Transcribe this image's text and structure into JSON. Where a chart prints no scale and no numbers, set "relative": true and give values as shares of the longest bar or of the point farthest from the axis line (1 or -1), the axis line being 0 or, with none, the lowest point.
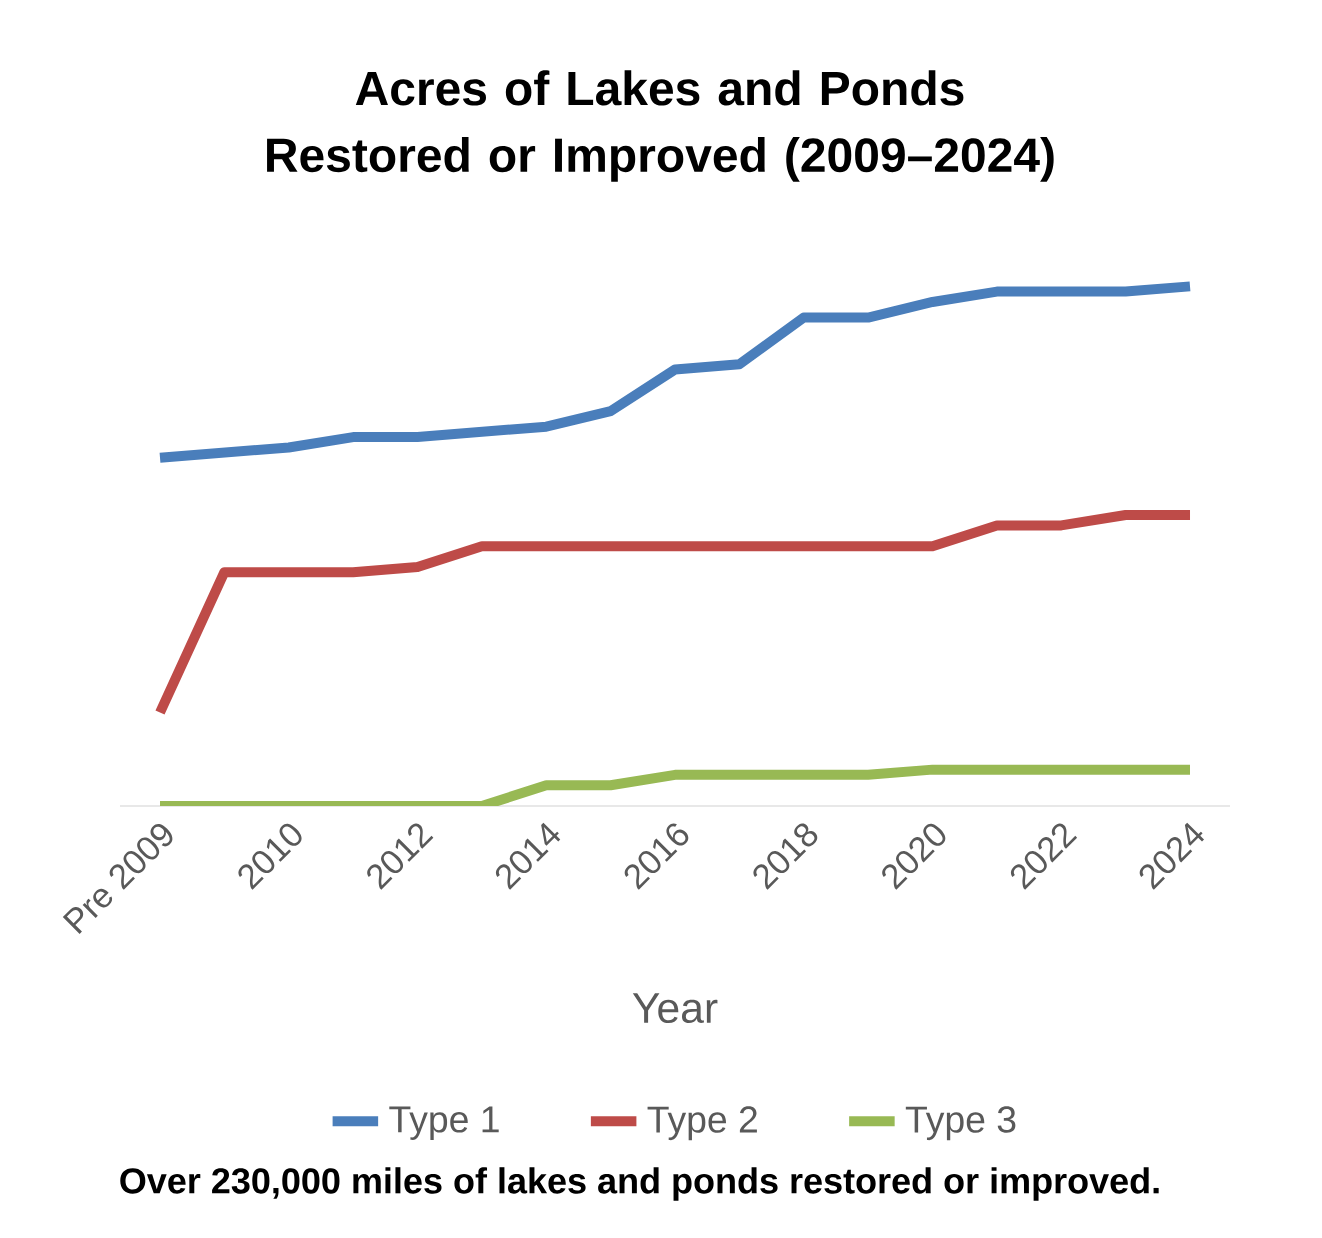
{
  "chart_data": {
    "type": "line",
    "title": "Acres of Lakes and Ponds Restored or Improved (2009–2024)",
    "xlabel": "Year",
    "categories": [
      "Pre 2009",
      null,
      "2010",
      null,
      "2012",
      null,
      "2014",
      null,
      "2016",
      null,
      "2018",
      null,
      "2020",
      null,
      "2022",
      null,
      "2024"
    ],
    "relative": true,
    "series": [
      {
        "name": "Type 1",
        "color": "#4a7ebb",
        "values": [
          0.67,
          0.68,
          0.69,
          0.71,
          0.71,
          0.72,
          0.73,
          0.76,
          0.84,
          0.85,
          0.94,
          0.94,
          0.97,
          0.99,
          0.99,
          0.99,
          1
        ]
      },
      {
        "name": "Type 2",
        "color": "#be4b48",
        "values": [
          0.18,
          0.45,
          0.45,
          0.45,
          0.46,
          0.5,
          0.5,
          0.5,
          0.5,
          0.5,
          0.5,
          0.5,
          0.5,
          0.54,
          0.54,
          0.56,
          0.56
        ]
      },
      {
        "name": "Type 3",
        "color": "#98b954",
        "values": [
          0,
          0,
          0,
          0,
          0,
          0,
          0.04,
          0.04,
          0.06,
          0.06,
          0.06,
          0.06,
          0.07,
          0.07,
          0.07,
          0.07,
          0.07
        ]
      }
    ],
    "legend": "bottom",
    "marker": "none",
    "line_style": "solid",
    "annotations": [
      "Over 230,000 miles of lakes and ponds restored or improved."
    ]
  }
}
